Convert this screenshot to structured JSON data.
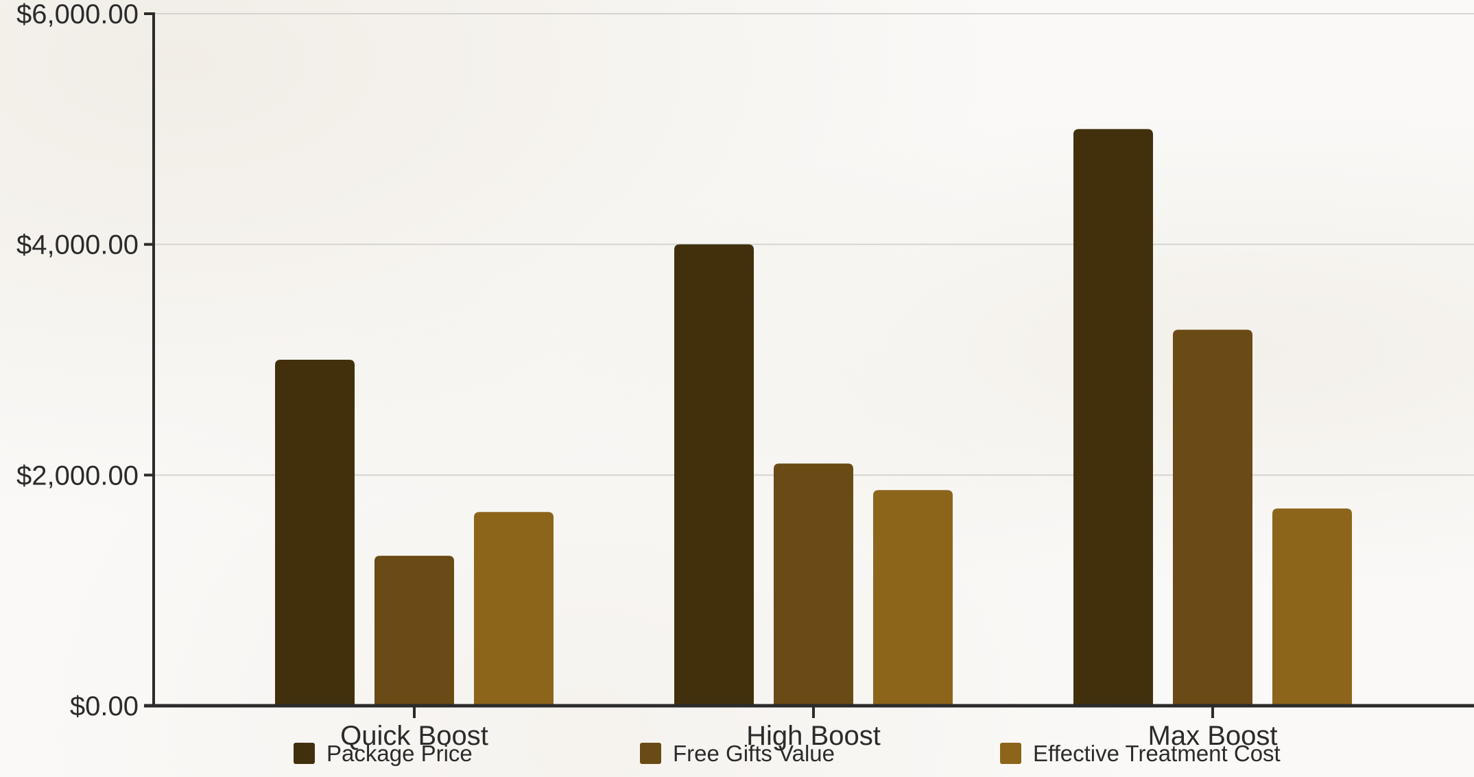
{
  "chart_data": {
    "type": "bar",
    "categories": [
      "Quick Boost",
      "High Boost",
      "Max Boost"
    ],
    "series": [
      {
        "name": "Package Price",
        "color": "#42300d",
        "values": [
          3000,
          4000,
          5000
        ]
      },
      {
        "name": "Free Gifts Value",
        "color": "#6a4a15",
        "values": [
          1300,
          2100,
          3260
        ]
      },
      {
        "name": "Effective Treatment Cost",
        "color": "#8c651b",
        "values": [
          1680,
          1870,
          1710
        ]
      }
    ],
    "yticks": [
      0,
      2000,
      4000,
      6000
    ],
    "ytick_labels": [
      "$0.00",
      "$2,000.00",
      "$4,000.00",
      "$6,000.00"
    ],
    "ylim": [
      0,
      6000
    ],
    "grid": true,
    "legend_position": "bottom",
    "title": "",
    "xlabel": "",
    "ylabel": ""
  }
}
